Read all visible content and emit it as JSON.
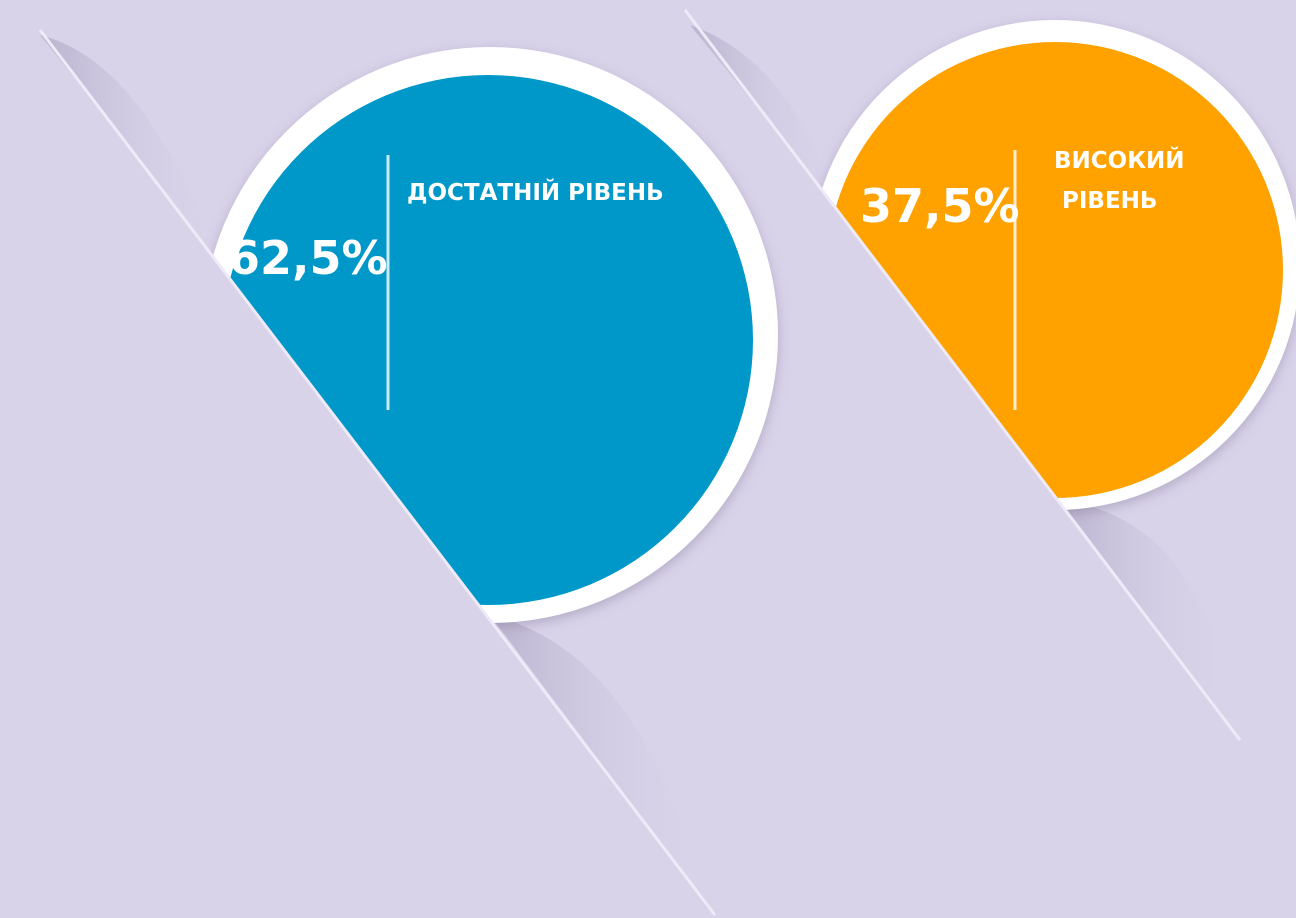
{
  "items": [
    {
      "value": "62,5%",
      "label_lines": [
        "ДОСТАТНІЙ РІВЕНЬ"
      ]
    },
    {
      "value": "37,5%",
      "label_lines": [
        "ВИСОКИЙ",
        "РІВЕНЬ"
      ]
    }
  ]
}
